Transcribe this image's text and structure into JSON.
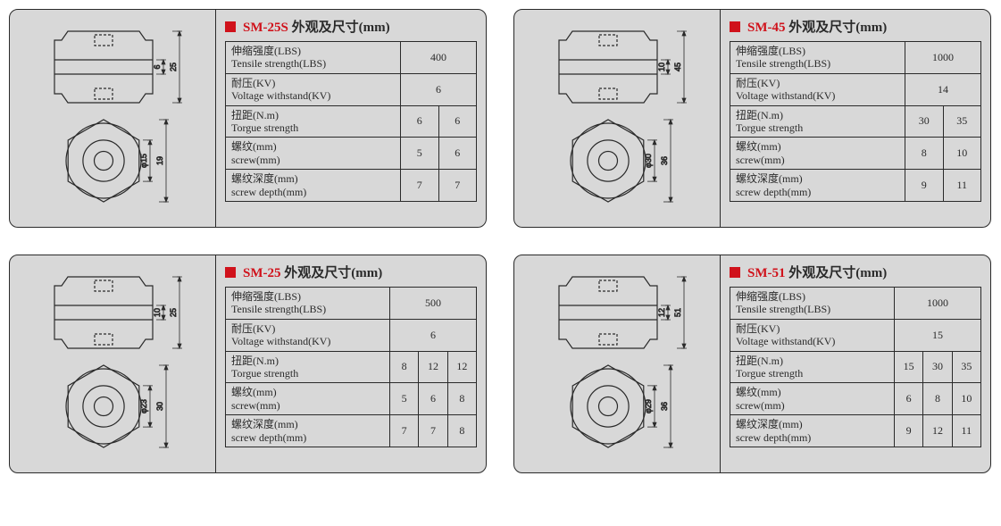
{
  "title_suffix": "外观及尺寸(mm)",
  "labels": {
    "tensile": {
      "cn": "伸缩强度(LBS)",
      "en": "Tensile strength(LBS)"
    },
    "voltage": {
      "cn": "耐压(KV)",
      "en": "Voltage withstand(KV)"
    },
    "torque": {
      "cn": "扭距(N.m)",
      "en": "Torgue strength"
    },
    "screw": {
      "cn": "螺纹(mm)",
      "en": "screw(mm)"
    },
    "depth": {
      "cn": "螺纹深度(mm)",
      "en": "screw depth(mm)"
    }
  },
  "colors": {
    "border": "#2a2a2a",
    "panel_bg": "#d8d8d8",
    "accent_red": "#d0121b",
    "draw_stroke": "#2a2a2a"
  },
  "panels": [
    {
      "model": "SM-25S",
      "diagram_dims": {
        "outer_h": "25",
        "inner_h": "6",
        "circle_d": "φ15",
        "circle_h": "19"
      },
      "value_cols": 2,
      "rows": [
        {
          "key": "tensile",
          "vals": [
            "400"
          ],
          "span": 2
        },
        {
          "key": "voltage",
          "vals": [
            "6"
          ],
          "span": 2
        },
        {
          "key": "torque",
          "vals": [
            "6",
            "6"
          ]
        },
        {
          "key": "screw",
          "vals": [
            "5",
            "6"
          ]
        },
        {
          "key": "depth",
          "vals": [
            "7",
            "7"
          ]
        }
      ]
    },
    {
      "model": "SM-45",
      "diagram_dims": {
        "outer_h": "45",
        "inner_h": "10",
        "circle_d": "φ30",
        "circle_h": "36"
      },
      "value_cols": 2,
      "rows": [
        {
          "key": "tensile",
          "vals": [
            "1000"
          ],
          "span": 2
        },
        {
          "key": "voltage",
          "vals": [
            "14"
          ],
          "span": 2
        },
        {
          "key": "torque",
          "vals": [
            "30",
            "35"
          ]
        },
        {
          "key": "screw",
          "vals": [
            "8",
            "10"
          ]
        },
        {
          "key": "depth",
          "vals": [
            "9",
            "11"
          ]
        }
      ]
    },
    {
      "model": "SM-25",
      "diagram_dims": {
        "outer_h": "25",
        "inner_h": "10",
        "circle_d": "φ23",
        "circle_h": "30"
      },
      "value_cols": 3,
      "rows": [
        {
          "key": "tensile",
          "vals": [
            "500"
          ],
          "span": 3
        },
        {
          "key": "voltage",
          "vals": [
            "6"
          ],
          "span": 3
        },
        {
          "key": "torque",
          "vals": [
            "8",
            "12",
            "12"
          ]
        },
        {
          "key": "screw",
          "vals": [
            "5",
            "6",
            "8"
          ]
        },
        {
          "key": "depth",
          "vals": [
            "7",
            "7",
            "8"
          ]
        }
      ]
    },
    {
      "model": "SM-51",
      "diagram_dims": {
        "outer_h": "51",
        "inner_h": "12",
        "circle_d": "φ29",
        "circle_h": "36"
      },
      "value_cols": 3,
      "rows": [
        {
          "key": "tensile",
          "vals": [
            "1000"
          ],
          "span": 3
        },
        {
          "key": "voltage",
          "vals": [
            "15"
          ],
          "span": 3
        },
        {
          "key": "torque",
          "vals": [
            "15",
            "30",
            "35"
          ]
        },
        {
          "key": "screw",
          "vals": [
            "6",
            "8",
            "10"
          ]
        },
        {
          "key": "depth",
          "vals": [
            "9",
            "12",
            "11"
          ]
        }
      ]
    }
  ],
  "diagram_style": {
    "stroke": "#2a2a2a",
    "stroke_width": 1.2,
    "dim_stroke_width": 0.8,
    "font_size": 9
  }
}
